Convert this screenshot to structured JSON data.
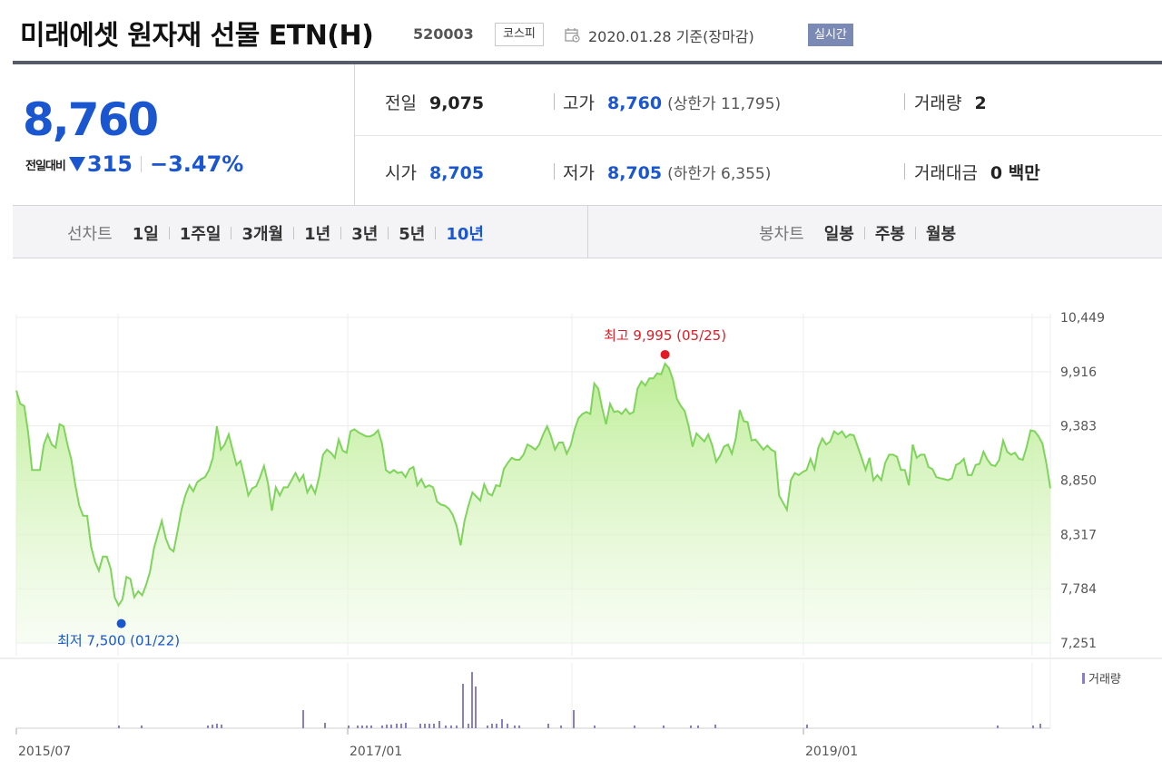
{
  "header": {
    "title": "미래에셋 원자재 선물 ETN(H)",
    "code": "520003",
    "market": "코스피",
    "date": "2020.01.28 기준(장마감)",
    "realtime_button": "실시간"
  },
  "price": {
    "current": "8,760",
    "change_label": "전일대비",
    "change": "315",
    "change_direction": "down",
    "change_pct": "−3.47%"
  },
  "stats": {
    "prev_close_label": "전일",
    "prev_close": "9,075",
    "high_label": "고가",
    "high": "8,760",
    "upper_limit": "(상한가 11,795)",
    "volume_label": "거래량",
    "volume": "2",
    "open_label": "시가",
    "open": "8,705",
    "low_label": "저가",
    "low": "8,705",
    "lower_limit": "(하한가 6,355)",
    "trade_value_label": "거래대금",
    "trade_value": "0 백만"
  },
  "line_chart_tabs": {
    "label": "선차트",
    "items": [
      "1일",
      "1주일",
      "3개월",
      "1년",
      "3년",
      "5년",
      "10년"
    ],
    "selected": "10년"
  },
  "candle_chart_tabs": {
    "label": "봉차트",
    "items": [
      "일봉",
      "주봉",
      "월봉"
    ]
  },
  "colors": {
    "up": "#e01b24",
    "down": "#1a56d0",
    "line": "#7fd45c",
    "volume": "#8a7fc4"
  },
  "chart_data": {
    "type": "area",
    "y_ticks": [
      "10,449",
      "9,916",
      "9,383",
      "8,850",
      "8,317",
      "7,784",
      "7,251"
    ],
    "ylim": [
      7251,
      10449
    ],
    "x_ticks": [
      "2015/07",
      "2017/01",
      "2019/01"
    ],
    "high_annotation": "최고 9,995 (05/25)",
    "low_annotation": "최저 7,500 (01/22)",
    "volume_legend": "거래량",
    "series": [
      {
        "values": [
          9730,
          9600,
          9580,
          9320,
          8950,
          8950,
          8950,
          9200,
          9300,
          9200,
          9170,
          9400,
          9380,
          9200,
          9050,
          8800,
          8600,
          8500,
          8500,
          8200,
          8050,
          7960,
          8100,
          8100,
          7980,
          7700,
          7620,
          7680,
          7900,
          7880,
          7700,
          7760,
          7720,
          7820,
          7950,
          8180,
          8320,
          8450,
          8280,
          8180,
          8150,
          8350,
          8560,
          8700,
          8800,
          8740,
          8830,
          8860,
          8880,
          8950,
          9070,
          9380,
          9150,
          9200,
          9300,
          9150,
          9000,
          9040,
          8880,
          8700,
          8770,
          8790,
          8880,
          8990,
          8820,
          8550,
          8780,
          8700,
          8780,
          8780,
          8850,
          8920,
          8840,
          8900,
          8730,
          8800,
          8720,
          8880,
          9100,
          9150,
          9120,
          9070,
          9250,
          9140,
          9120,
          9330,
          9350,
          9320,
          9300,
          9280,
          9280,
          9300,
          9340,
          9210,
          8950,
          8920,
          8950,
          8920,
          8930,
          8880,
          8960,
          8980,
          8800,
          8860,
          8780,
          8800,
          8780,
          8640,
          8610,
          8600,
          8570,
          8510,
          8400,
          8210,
          8450,
          8600,
          8730,
          8690,
          8650,
          8810,
          8720,
          8700,
          8800,
          8790,
          8960,
          9020,
          9070,
          9050,
          9050,
          9100,
          9200,
          9180,
          9150,
          9200,
          9300,
          9380,
          9280,
          9150,
          9220,
          9220,
          9110,
          9190,
          9350,
          9460,
          9500,
          9520,
          9500,
          9800,
          9750,
          9560,
          9400,
          9600,
          9520,
          9530,
          9500,
          9550,
          9500,
          9520,
          9750,
          9820,
          9780,
          9850,
          9850,
          9900,
          9890,
          9995,
          9950,
          9840,
          9650,
          9580,
          9530,
          9380,
          9180,
          9310,
          9270,
          9230,
          9300,
          9190,
          9030,
          9090,
          9180,
          9200,
          9110,
          9260,
          9540,
          9430,
          9420,
          9240,
          9250,
          9200,
          9150,
          9190,
          9150,
          9130,
          8700,
          8630,
          8560,
          8850,
          8920,
          8900,
          8930,
          8950,
          9060,
          8960,
          9170,
          9260,
          9200,
          9230,
          9330,
          9300,
          9330,
          9270,
          9300,
          9290,
          9180,
          9070,
          8950,
          9070,
          8850,
          8900,
          8850,
          9020,
          9100,
          9100,
          9080,
          8950,
          8950,
          8800,
          9200,
          9070,
          9100,
          9100,
          8980,
          8960,
          8880,
          8870,
          8860,
          8850,
          8870,
          9000,
          9020,
          9060,
          8900,
          8900,
          9000,
          9010,
          9130,
          9050,
          9000,
          8990,
          9050,
          9240,
          9130,
          9100,
          9120,
          9060,
          9050,
          9180,
          9340,
          9330,
          9280,
          9210,
          9010,
          8770
        ]
      }
    ],
    "volume_series": {
      "name": "거래량",
      "values": [
        0,
        0,
        0,
        0,
        0,
        0,
        0,
        0,
        0,
        0,
        0,
        0,
        0,
        0,
        0,
        0,
        0,
        0,
        0,
        0,
        0,
        0,
        0,
        0,
        0,
        0,
        0,
        0,
        0,
        0,
        0,
        0,
        0,
        0,
        0,
        0,
        0,
        0,
        0,
        0,
        0,
        0,
        0,
        0,
        0,
        0,
        0,
        0,
        0,
        0,
        0,
        0,
        0,
        0,
        0,
        0,
        0,
        0,
        0,
        0,
        0,
        0,
        0,
        0,
        0,
        0,
        0,
        0,
        0,
        0,
        0,
        0,
        0,
        0,
        0,
        0,
        0,
        0,
        0,
        0,
        0,
        0,
        0,
        0,
        0,
        0,
        0,
        0,
        0,
        0,
        0,
        0,
        0,
        0,
        0,
        0,
        0,
        0,
        0,
        0,
        0,
        0,
        0,
        0,
        0,
        0,
        0,
        0,
        0,
        0,
        0,
        0,
        0,
        0,
        0,
        0,
        0,
        0,
        0,
        0,
        0,
        0,
        0,
        0,
        0,
        0,
        0,
        0,
        0,
        0,
        0,
        0,
        0,
        0,
        0,
        0,
        0,
        0,
        0,
        0,
        0,
        0,
        0,
        0,
        0,
        0,
        0,
        0,
        0,
        0,
        0,
        0,
        0,
        0,
        0,
        0,
        0,
        0,
        0,
        0,
        0,
        0,
        0,
        0,
        0,
        0,
        0,
        0,
        0,
        0,
        0,
        0,
        0,
        0,
        0,
        0,
        0,
        0,
        0,
        0,
        0,
        0,
        0,
        0,
        0,
        0,
        0,
        0,
        0,
        0,
        0,
        0,
        0,
        0,
        0,
        0,
        0,
        0,
        0,
        0,
        0,
        0,
        0,
        0,
        0,
        0,
        0,
        0,
        0,
        0,
        0,
        0,
        0,
        0,
        0,
        0,
        0,
        0,
        0,
        0,
        0,
        0,
        0,
        0,
        0,
        0,
        0,
        0,
        0,
        0,
        0,
        0,
        0,
        0,
        0,
        0,
        0,
        0,
        0,
        0,
        0,
        0,
        0,
        0,
        0,
        0,
        0,
        0,
        0,
        0,
        0,
        0,
        0,
        0,
        0,
        0,
        0,
        0,
        0,
        0,
        0,
        0,
        0,
        0,
        0,
        0,
        0,
        0,
        0,
        0,
        0,
        0,
        0,
        0,
        0,
        0,
        0,
        0,
        0,
        0,
        0,
        0,
        0,
        0,
        0,
        0,
        0,
        0,
        0,
        0,
        0,
        0,
        0,
        0,
        0,
        0,
        0,
        0,
        0,
        0,
        0,
        0,
        0,
        0,
        0,
        0,
        0,
        0
      ]
    },
    "grid": true
  }
}
